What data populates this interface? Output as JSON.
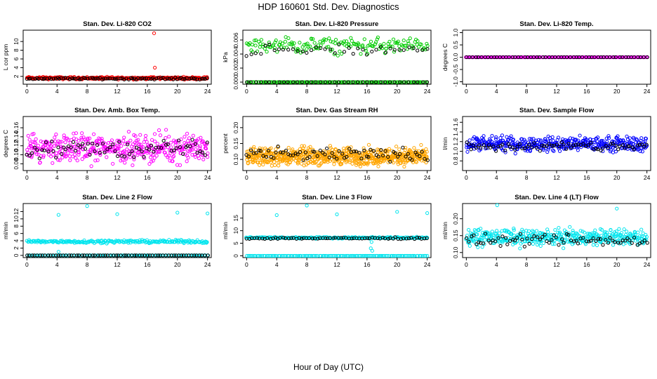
{
  "title": "HDP  160601  Std. Dev. Diagnostics",
  "xlabel": "Hour of Day (UTC)",
  "chart_data": [
    {
      "type": "scatter",
      "title": "Stan. Dev. Li-820 CO2",
      "ylabel": "L cor ppm",
      "xlim": [
        -0.5,
        24.5
      ],
      "ylim": [
        0.2,
        12.6
      ],
      "xticks": [
        0,
        4,
        8,
        12,
        16,
        20,
        24
      ],
      "yticks": [
        "2",
        "4",
        "6",
        "8",
        "10"
      ],
      "yticks_v": [
        2,
        4,
        6,
        8,
        10
      ],
      "series": [
        {
          "name": "all",
          "color": "#ff0000",
          "base": 1.6,
          "spread": 0.4,
          "count": 330,
          "outliers": [
            [
              16.9,
              11.9
            ],
            [
              17.0,
              4.0
            ]
          ]
        },
        {
          "name": "hourly",
          "color": "#000000",
          "base": 1.5,
          "spread": 0.3,
          "count": 90
        }
      ]
    },
    {
      "type": "scatter",
      "title": "Stan. Dev. Li-820 Pressure",
      "ylabel": "kPa",
      "xlim": [
        -0.5,
        24.5
      ],
      "ylim": [
        -0.0003,
        0.0074
      ],
      "xticks": [
        0,
        4,
        8,
        12,
        16,
        20,
        24
      ],
      "yticks": [
        "0.000",
        "0.002",
        "0.004",
        "0.006"
      ],
      "yticks_v": [
        0,
        0.002,
        0.004,
        0.006
      ],
      "series": [
        {
          "name": "all-zero",
          "color": "#00cc00",
          "base": 0.0,
          "spread": 0,
          "count": 130
        },
        {
          "name": "all",
          "color": "#00cc00",
          "base": 0.0052,
          "spread": 0.0017,
          "count": 170
        },
        {
          "name": "hourly",
          "color": "#000000",
          "base": 0.0045,
          "spread": 0.0012,
          "count": 40
        },
        {
          "name": "hourly-zero",
          "color": "#000000",
          "base": 0.0,
          "spread": 0,
          "count": 40
        }
      ]
    },
    {
      "type": "scatter",
      "title": "Stan. Dev. Li-820 Temp.",
      "ylabel": "degrees C",
      "xlim": [
        -0.5,
        24.5
      ],
      "ylim": [
        -1.1,
        1.1
      ],
      "xticks": [
        0,
        4,
        8,
        12,
        16,
        20,
        24
      ],
      "yticks": [
        "-1.0",
        "-0.5",
        "0.0",
        "0.5",
        "1.0"
      ],
      "yticks_v": [
        -1,
        -0.5,
        0,
        0.5,
        1
      ],
      "series": [
        {
          "name": "all",
          "color": "#ff00ff",
          "base": 0.0,
          "spread": 0,
          "count": 200
        },
        {
          "name": "hourly",
          "color": "#000000",
          "base": 0.0,
          "spread": 0,
          "count": 60
        }
      ]
    },
    {
      "type": "scatter",
      "title": "Stan. Dev. Amb. Box Temp.",
      "ylabel": "degrees C",
      "xlim": [
        -0.5,
        24.5
      ],
      "ylim": [
        0.065,
        0.185
      ],
      "xticks": [
        0,
        4,
        8,
        12,
        16,
        20,
        24
      ],
      "yticks": [
        "0.08",
        "0.10",
        "0.12",
        "0.14",
        "0.16"
      ],
      "yticks_v": [
        0.08,
        0.1,
        0.12,
        0.14,
        0.16
      ],
      "series": [
        {
          "name": "all",
          "color": "#ff00ff",
          "base": 0.115,
          "spread": 0.045,
          "count": 420
        },
        {
          "name": "hourly",
          "color": "#000000",
          "base": 0.112,
          "spread": 0.03,
          "count": 75
        }
      ]
    },
    {
      "type": "scatter",
      "title": "Stan. Dev. Gas Stream RH",
      "ylabel": "percent",
      "xlim": [
        -0.5,
        24.5
      ],
      "ylim": [
        0.065,
        0.235
      ],
      "xticks": [
        0,
        4,
        8,
        12,
        16,
        20,
        24
      ],
      "yticks": [
        "0.10",
        "0.15",
        "0.20"
      ],
      "yticks_v": [
        0.1,
        0.15,
        0.2
      ],
      "series": [
        {
          "name": "all",
          "color": "#ffa500",
          "base": 0.11,
          "spread": 0.04,
          "count": 650
        },
        {
          "name": "hourly",
          "color": "#000000",
          "base": 0.115,
          "spread": 0.03,
          "count": 75
        }
      ]
    },
    {
      "type": "scatter",
      "title": "Stan. Dev. Sample Flow",
      "ylabel": "l/min",
      "xlim": [
        -0.5,
        24.5
      ],
      "ylim": [
        0.6,
        1.72
      ],
      "xticks": [
        0,
        4,
        8,
        12,
        16,
        20,
        24
      ],
      "yticks": [
        "0.8",
        "1.0",
        "1.2",
        "1.4",
        "1.6"
      ],
      "yticks_v": [
        0.8,
        1.0,
        1.2,
        1.4,
        1.6
      ],
      "series": [
        {
          "name": "all",
          "color": "#0000ff",
          "base": 1.15,
          "spread": 0.22,
          "count": 420
        },
        {
          "name": "hourly",
          "color": "#000000",
          "base": 1.1,
          "spread": 0.15,
          "count": 75
        }
      ]
    },
    {
      "type": "scatter",
      "title": "Stan. Dev. Line 2 Flow",
      "ylabel": "ml/min",
      "xlim": [
        -0.5,
        24.5
      ],
      "ylim": [
        -0.6,
        14.2
      ],
      "xticks": [
        0,
        4,
        8,
        12,
        16,
        20,
        24
      ],
      "yticks": [
        "0",
        "2",
        "4",
        "6",
        "8",
        "10",
        "12"
      ],
      "yticks_v": [
        0,
        2,
        4,
        6,
        8,
        10,
        12
      ],
      "series": [
        {
          "name": "all",
          "color": "#00e5ee",
          "base": 3.8,
          "spread": 0.6,
          "count": 220,
          "outliers": [
            [
              4.2,
              11.1
            ],
            [
              8.0,
              13.5
            ],
            [
              12.0,
              11.3
            ],
            [
              20.0,
              11.7
            ],
            [
              24.0,
              11.5
            ],
            [
              4.2,
              1.0
            ]
          ]
        },
        {
          "name": "zero",
          "color": "#00e5ee",
          "base": 0.0,
          "spread": 0,
          "count": 100
        },
        {
          "name": "hourly",
          "color": "#000000",
          "base": 0.0,
          "spread": 0,
          "count": 70
        }
      ]
    },
    {
      "type": "scatter",
      "title": "Stan. Dev. Line 3 Flow",
      "ylabel": "ml/min",
      "xlim": [
        -0.5,
        24.5
      ],
      "ylim": [
        -0.7,
        20.8
      ],
      "xticks": [
        0,
        4,
        8,
        12,
        16,
        20,
        24
      ],
      "yticks": [
        "0",
        "5",
        "10",
        "15"
      ],
      "yticks_v": [
        0,
        5,
        10,
        15
      ],
      "series": [
        {
          "name": "all",
          "color": "#00e5ee",
          "base": 7.2,
          "spread": 0.5,
          "count": 220,
          "outliers": [
            [
              4.0,
              16.2
            ],
            [
              8.0,
              20.0
            ],
            [
              12.0,
              16.5
            ],
            [
              20.0,
              17.5
            ],
            [
              24.0,
              17.0
            ],
            [
              16.5,
              3.0
            ],
            [
              16.7,
              2.0
            ],
            [
              16.6,
              5.5
            ]
          ]
        },
        {
          "name": "zero",
          "color": "#00e5ee",
          "base": 0.0,
          "spread": 0,
          "count": 120
        },
        {
          "name": "hourly",
          "color": "#000000",
          "base": 7.0,
          "spread": 0.5,
          "count": 70
        }
      ]
    },
    {
      "type": "scatter",
      "title": "Stan. Dev. Line 4 (LT) Flow",
      "ylabel": "ml/min",
      "xlim": [
        -0.5,
        24.5
      ],
      "ylim": [
        0.085,
        0.245
      ],
      "xticks": [
        0,
        4,
        8,
        12,
        16,
        20,
        24
      ],
      "yticks": [
        "0.10",
        "0.15",
        "0.20"
      ],
      "yticks_v": [
        0.1,
        0.15,
        0.2
      ],
      "series": [
        {
          "name": "all",
          "color": "#00e5ee",
          "base": 0.145,
          "spread": 0.035,
          "count": 420,
          "outliers": [
            [
              4.1,
              0.24
            ],
            [
              20.0,
              0.23
            ]
          ]
        },
        {
          "name": "hourly",
          "color": "#000000",
          "base": 0.135,
          "spread": 0.025,
          "count": 75
        }
      ]
    }
  ]
}
